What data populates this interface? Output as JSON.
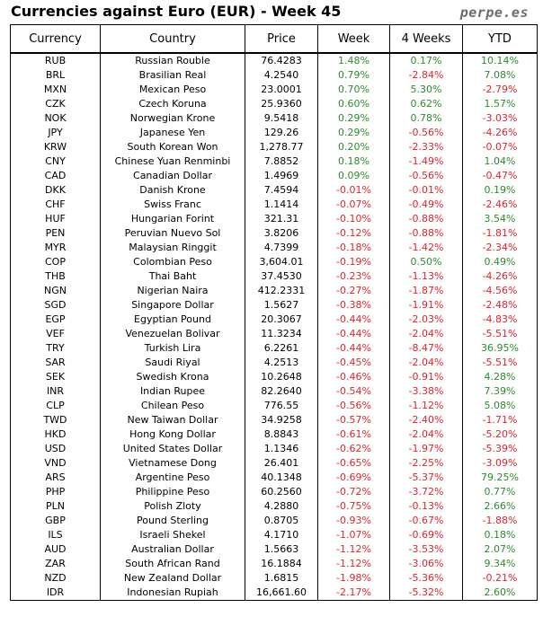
{
  "header": {
    "title": "Currencies against Euro (EUR) - Week 45",
    "brand": "perpe.es"
  },
  "colors": {
    "positive": "#2e8b2e",
    "negative": "#e0242b"
  },
  "table": {
    "columns": [
      "Currency",
      "Country",
      "Price",
      "Week",
      "4 Weeks",
      "YTD"
    ],
    "rows": [
      {
        "code": "RUB",
        "country": "Russian Rouble",
        "price": "76.4283",
        "week": "1.48%",
        "weeks4": "0.17%",
        "ytd": "10.14%"
      },
      {
        "code": "BRL",
        "country": "Brasilian Real",
        "price": "4.2540",
        "week": "0.79%",
        "weeks4": "-2.84%",
        "ytd": "7.08%"
      },
      {
        "code": "MXN",
        "country": "Mexican Peso",
        "price": "23.0001",
        "week": "0.70%",
        "weeks4": "5.30%",
        "ytd": "-2.79%"
      },
      {
        "code": "CZK",
        "country": "Czech Koruna",
        "price": "25.9360",
        "week": "0.60%",
        "weeks4": "0.62%",
        "ytd": "1.57%"
      },
      {
        "code": "NOK",
        "country": "Norwegian Krone",
        "price": "9.5418",
        "week": "0.29%",
        "weeks4": "0.78%",
        "ytd": "-3.03%"
      },
      {
        "code": "JPY",
        "country": "Japanese Yen",
        "price": "129.26",
        "week": "0.29%",
        "weeks4": "-0.56%",
        "ytd": "-4.26%"
      },
      {
        "code": "KRW",
        "country": "South Korean Won",
        "price": "1,278.77",
        "week": "0.20%",
        "weeks4": "-2.33%",
        "ytd": "-0.07%"
      },
      {
        "code": "CNY",
        "country": "Chinese Yuan Renminbi",
        "price": "7.8852",
        "week": "0.18%",
        "weeks4": "-1.49%",
        "ytd": "1.04%"
      },
      {
        "code": "CAD",
        "country": "Canadian Dollar",
        "price": "1.4969",
        "week": "0.09%",
        "weeks4": "-0.56%",
        "ytd": "-0.47%"
      },
      {
        "code": "DKK",
        "country": "Danish Krone",
        "price": "7.4594",
        "week": "-0.01%",
        "weeks4": "-0.01%",
        "ytd": "0.19%"
      },
      {
        "code": "CHF",
        "country": "Swiss Franc",
        "price": "1.1414",
        "week": "-0.07%",
        "weeks4": "-0.49%",
        "ytd": "-2.46%"
      },
      {
        "code": "HUF",
        "country": "Hungarian Forint",
        "price": "321.31",
        "week": "-0.10%",
        "weeks4": "-0.88%",
        "ytd": "3.54%"
      },
      {
        "code": "PEN",
        "country": "Peruvian Nuevo Sol",
        "price": "3.8206",
        "week": "-0.12%",
        "weeks4": "-0.88%",
        "ytd": "-1.81%"
      },
      {
        "code": "MYR",
        "country": "Malaysian Ringgit",
        "price": "4.7399",
        "week": "-0.18%",
        "weeks4": "-1.42%",
        "ytd": "-2.34%"
      },
      {
        "code": "COP",
        "country": "Colombian Peso",
        "price": "3,604.01",
        "week": "-0.19%",
        "weeks4": "0.50%",
        "ytd": "0.49%"
      },
      {
        "code": "THB",
        "country": "Thai Baht",
        "price": "37.4530",
        "week": "-0.23%",
        "weeks4": "-1.13%",
        "ytd": "-4.26%"
      },
      {
        "code": "NGN",
        "country": "Nigerian Naira",
        "price": "412.2331",
        "week": "-0.27%",
        "weeks4": "-1.87%",
        "ytd": "-4.56%"
      },
      {
        "code": "SGD",
        "country": "Singapore Dollar",
        "price": "1.5627",
        "week": "-0.38%",
        "weeks4": "-1.91%",
        "ytd": "-2.48%"
      },
      {
        "code": "EGP",
        "country": "Egyptian Pound",
        "price": "20.3067",
        "week": "-0.44%",
        "weeks4": "-2.03%",
        "ytd": "-4.83%"
      },
      {
        "code": "VEF",
        "country": "Venezuelan Bolivar",
        "price": "11.3234",
        "week": "-0.44%",
        "weeks4": "-2.04%",
        "ytd": "-5.51%"
      },
      {
        "code": "TRY",
        "country": "Turkish Lira",
        "price": "6.2261",
        "week": "-0.44%",
        "weeks4": "-8.47%",
        "ytd": "36.95%"
      },
      {
        "code": "SAR",
        "country": "Saudi Riyal",
        "price": "4.2513",
        "week": "-0.45%",
        "weeks4": "-2.04%",
        "ytd": "-5.51%"
      },
      {
        "code": "SEK",
        "country": "Swedish Krona",
        "price": "10.2648",
        "week": "-0.46%",
        "weeks4": "-0.91%",
        "ytd": "4.28%"
      },
      {
        "code": "INR",
        "country": "Indian Rupee",
        "price": "82.2640",
        "week": "-0.54%",
        "weeks4": "-3.38%",
        "ytd": "7.39%"
      },
      {
        "code": "CLP",
        "country": "Chilean Peso",
        "price": "776.55",
        "week": "-0.56%",
        "weeks4": "-1.12%",
        "ytd": "5.08%"
      },
      {
        "code": "TWD",
        "country": "New Taiwan Dollar",
        "price": "34.9258",
        "week": "-0.57%",
        "weeks4": "-2.40%",
        "ytd": "-1.71%"
      },
      {
        "code": "HKD",
        "country": "Hong Kong Dollar",
        "price": "8.8843",
        "week": "-0.61%",
        "weeks4": "-2.04%",
        "ytd": "-5.20%"
      },
      {
        "code": "USD",
        "country": "United States Dollar",
        "price": "1.1346",
        "week": "-0.62%",
        "weeks4": "-1.97%",
        "ytd": "-5.39%"
      },
      {
        "code": "VND",
        "country": "Vietnamese Dong",
        "price": "26.401",
        "week": "-0.65%",
        "weeks4": "-2.25%",
        "ytd": "-3.09%"
      },
      {
        "code": "ARS",
        "country": "Argentine Peso",
        "price": "40.1348",
        "week": "-0.69%",
        "weeks4": "-5.37%",
        "ytd": "79.25%"
      },
      {
        "code": "PHP",
        "country": "Philippine Peso",
        "price": "60.2560",
        "week": "-0.72%",
        "weeks4": "-3.72%",
        "ytd": "0.77%"
      },
      {
        "code": "PLN",
        "country": "Polish Zloty",
        "price": "4.2880",
        "week": "-0.75%",
        "weeks4": "-0.13%",
        "ytd": "2.66%"
      },
      {
        "code": "GBP",
        "country": "Pound Sterling",
        "price": "0.8705",
        "week": "-0.93%",
        "weeks4": "-0.67%",
        "ytd": "-1.88%"
      },
      {
        "code": "ILS",
        "country": "Israeli Shekel",
        "price": "4.1710",
        "week": "-1.07%",
        "weeks4": "-0.69%",
        "ytd": "0.18%"
      },
      {
        "code": "AUD",
        "country": "Australian Dollar",
        "price": "1.5663",
        "week": "-1.12%",
        "weeks4": "-3.53%",
        "ytd": "2.07%"
      },
      {
        "code": "ZAR",
        "country": "South African Rand",
        "price": "16.1884",
        "week": "-1.12%",
        "weeks4": "-3.06%",
        "ytd": "9.34%"
      },
      {
        "code": "NZD",
        "country": "New Zealand Dollar",
        "price": "1.6815",
        "week": "-1.98%",
        "weeks4": "-5.36%",
        "ytd": "-0.21%"
      },
      {
        "code": "IDR",
        "country": "Indonesian Rupiah",
        "price": "16,661.60",
        "week": "-2.17%",
        "weeks4": "-5.32%",
        "ytd": "2.60%"
      }
    ]
  }
}
